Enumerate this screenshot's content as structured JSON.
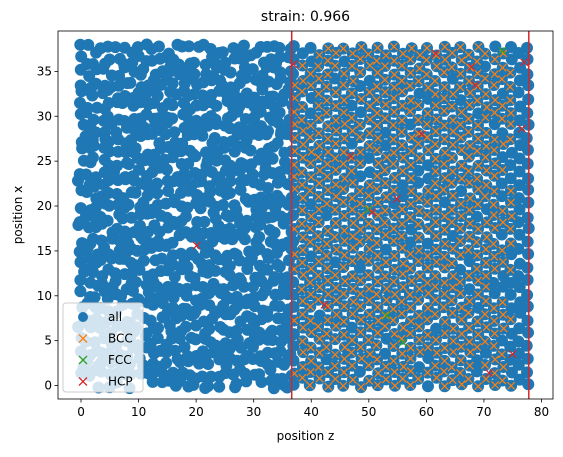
{
  "chart_data": {
    "type": "scatter",
    "title": "strain: 0.966",
    "xlabel": "position z",
    "ylabel": "position x",
    "xlim": [
      -4,
      82
    ],
    "ylim": [
      -1.5,
      39.5
    ],
    "xticks": [
      0,
      10,
      20,
      30,
      40,
      50,
      60,
      70,
      80
    ],
    "yticks": [
      0,
      5,
      10,
      15,
      20,
      25,
      30,
      35
    ],
    "grid": false,
    "legend_position": "lower-left",
    "vlines": [
      {
        "x": 36.6,
        "color": "#d62728"
      },
      {
        "x": 77.8,
        "color": "#d62728"
      }
    ],
    "series": [
      {
        "name": "all",
        "marker": "circle",
        "color": "#1f77b4",
        "region_disordered": {
          "z": [
            0,
            37
          ],
          "x": [
            0,
            37.8
          ]
        },
        "region_lattice": {
          "z": [
            37,
            78
          ],
          "x": [
            0,
            37.8
          ]
        }
      },
      {
        "name": "BCC",
        "marker": "x",
        "color": "#ff7f0e",
        "region": {
          "z": [
            37,
            76
          ],
          "x": [
            0,
            37.8
          ]
        }
      },
      {
        "name": "FCC",
        "marker": "x",
        "color": "#2ca02c",
        "points": [
          [
            49.9,
            19.6
          ],
          [
            53.1,
            7.8
          ],
          [
            55.9,
            4.8
          ],
          [
            73.2,
            37.3
          ]
        ]
      },
      {
        "name": "HCP",
        "marker": "x",
        "color": "#d62728",
        "points": [
          [
            20.1,
            15.6
          ],
          [
            36.9,
            35.8
          ],
          [
            42.3,
            9.0
          ],
          [
            46.8,
            25.6
          ],
          [
            50.6,
            19.3
          ],
          [
            54.9,
            20.8
          ],
          [
            59.2,
            28.0
          ],
          [
            61.6,
            37.0
          ],
          [
            67.8,
            35.5
          ],
          [
            68.5,
            33.5
          ],
          [
            70.9,
            1.4
          ],
          [
            75.0,
            3.5
          ],
          [
            76.6,
            28.6
          ],
          [
            77.0,
            36.0
          ]
        ]
      }
    ]
  }
}
